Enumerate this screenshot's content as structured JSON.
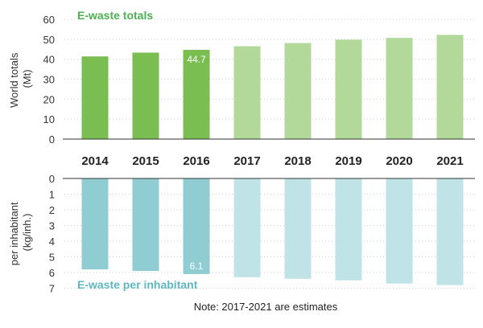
{
  "chart_data": [
    {
      "type": "bar",
      "title": "E-waste totals",
      "ylabel": "World totals (Mt)",
      "categories": [
        "2014",
        "2015",
        "2016",
        "2017",
        "2018",
        "2019",
        "2020",
        "2021"
      ],
      "values": [
        41.4,
        43.3,
        44.7,
        46.5,
        48.1,
        49.8,
        50.7,
        52.2
      ],
      "ylim": [
        0,
        60
      ],
      "yticks": [
        "0",
        "10",
        "20",
        "30",
        "40",
        "50",
        "60"
      ],
      "data_labels": [
        {
          "category": "2016",
          "text": "44.7"
        }
      ],
      "estimated_from": "2017",
      "colors": {
        "actual": "#7abd50",
        "estimate": "#b3d99a",
        "title": "#4caf50"
      },
      "grid": true
    },
    {
      "type": "bar",
      "orientation": "inverted",
      "title": "E-waste per inhabitant",
      "ylabel": "per inhabitant (kg/inh.)",
      "categories": [
        "2014",
        "2015",
        "2016",
        "2017",
        "2018",
        "2019",
        "2020",
        "2021"
      ],
      "values": [
        5.8,
        5.9,
        6.1,
        6.3,
        6.4,
        6.5,
        6.7,
        6.8
      ],
      "ylim": [
        0,
        7
      ],
      "yticks": [
        "0",
        "1",
        "2",
        "3",
        "4",
        "5",
        "6",
        "7"
      ],
      "data_labels": [
        {
          "category": "2016",
          "text": "6.1"
        }
      ],
      "estimated_from": "2017",
      "colors": {
        "actual": "#8fcdd3",
        "estimate": "#bfe3e7",
        "title": "#5fb7c0"
      },
      "grid": true
    }
  ],
  "note": "Note: 2017-2021 are estimates"
}
